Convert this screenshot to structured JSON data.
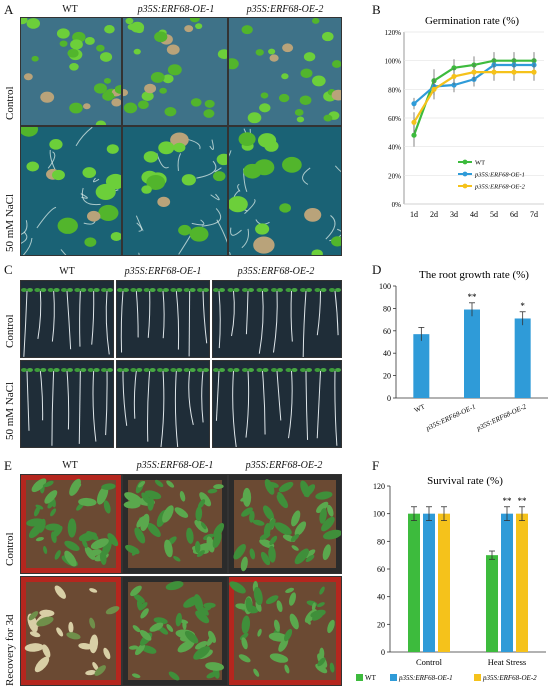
{
  "panels": {
    "A": {
      "letter": "A",
      "columns": [
        "WT",
        "p35S:ERF68-OE-1",
        "p35S:ERF68-OE-2"
      ],
      "rows": [
        "Control",
        "50 mM NaCl"
      ]
    },
    "C": {
      "letter": "C",
      "columns": [
        "WT",
        "p35S:ERF68-OE-1",
        "p35S:ERF68-OE-2"
      ],
      "rows": [
        "Control",
        "50 mM NaCl"
      ]
    },
    "E": {
      "letter": "E",
      "columns": [
        "WT",
        "p35S:ERF68-OE-1",
        "p35S:ERF68-OE-2"
      ],
      "rows": [
        "Control",
        "Recovery for 3d"
      ]
    }
  },
  "colors": {
    "wt": "#3dbb3d",
    "oe1": "#2f9bd8",
    "oe2": "#f5c21b",
    "bar": "#2f9bd8",
    "tray_control": "#2b2b2b",
    "tray_heat": "#b5261e"
  },
  "chart_data": [
    {
      "panel": "B",
      "type": "line",
      "title": "Germination rate (%)",
      "x": [
        "1d",
        "2d",
        "3d",
        "4d",
        "5d",
        "6d",
        "7d"
      ],
      "ylim": [
        0,
        120
      ],
      "yticks": [
        "0%",
        "20%",
        "40%",
        "60%",
        "80%",
        "100%",
        "120%"
      ],
      "legend_position": "bottom-right",
      "series": [
        {
          "name": "WT",
          "values": [
            48,
            86,
            95,
            97,
            100,
            100,
            100
          ],
          "err": [
            8,
            8,
            6,
            6,
            6,
            6,
            6
          ]
        },
        {
          "name": "p35S:ERF68-OE-1",
          "values": [
            70,
            82,
            83,
            87,
            97,
            97,
            97
          ],
          "err": [
            4,
            6,
            5,
            5,
            5,
            5,
            5
          ]
        },
        {
          "name": "p35S:ERF68-OE-2",
          "values": [
            57,
            80,
            89,
            92,
            92,
            92,
            92
          ],
          "err": [
            7,
            7,
            6,
            6,
            6,
            6,
            6
          ]
        }
      ]
    },
    {
      "panel": "D",
      "type": "bar",
      "title": "The root growth rate (%)",
      "categories": [
        "WT",
        "p35S:ERF68-OE-1",
        "p35S:ERF68-OE-2"
      ],
      "values": [
        57,
        79,
        71
      ],
      "err": [
        6,
        6,
        6
      ],
      "significance": [
        "",
        "**",
        "*"
      ],
      "ylim": [
        0,
        100
      ],
      "yticks": [
        "0",
        "20",
        "40",
        "60",
        "80",
        "100"
      ]
    },
    {
      "panel": "F",
      "type": "bar",
      "title": "Survival rate (%)",
      "categories": [
        "Control",
        "Heat Stress"
      ],
      "ylim": [
        0,
        120
      ],
      "yticks": [
        "0",
        "20",
        "40",
        "60",
        "80",
        "100",
        "120"
      ],
      "legend_position": "bottom",
      "series": [
        {
          "name": "WT",
          "values": [
            100,
            70
          ],
          "err": [
            5,
            3
          ],
          "significance": [
            "",
            ""
          ]
        },
        {
          "name": "p35S:ERF68-OE-1",
          "values": [
            100,
            100
          ],
          "err": [
            5,
            5
          ],
          "significance": [
            "",
            "**"
          ]
        },
        {
          "name": "p35S:ERF68-OE-2",
          "values": [
            100,
            100
          ],
          "err": [
            5,
            5
          ],
          "significance": [
            "",
            "**"
          ]
        }
      ]
    }
  ]
}
